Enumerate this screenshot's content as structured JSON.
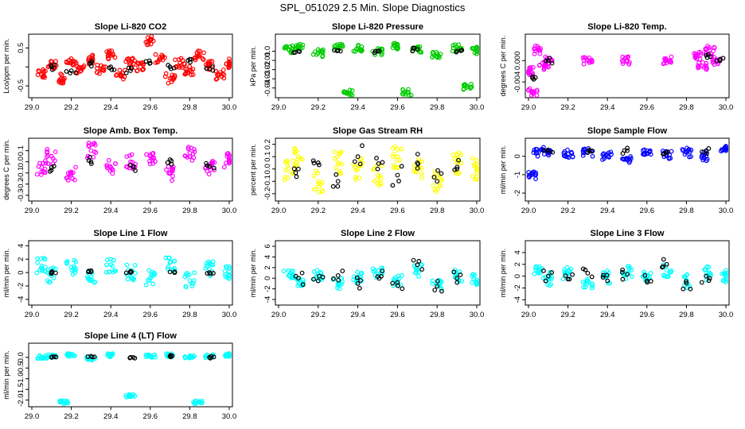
{
  "page": {
    "title": "SPL_051029  2.5 Min. Slope Diagnostics"
  },
  "colors": {
    "text": "#000000",
    "axes": "#000000",
    "overlay": "#000000"
  },
  "chart_data": [
    {
      "type": "scatter",
      "title": "Slope Li-820 CO2",
      "xlabel": "",
      "ylabel": "Lco/ppm per min.",
      "color": "#ff0000",
      "xlim": [
        29.0,
        30.0
      ],
      "ylim": [
        -0.75,
        0.8
      ],
      "xticks": [
        "29.0",
        "29.2",
        "29.4",
        "29.6",
        "29.8",
        "30.0"
      ],
      "yticks": [
        -0.5,
        0.0,
        0.5
      ],
      "yticklabels": [
        "-0.5",
        "",
        "0.5"
      ],
      "series": [
        {
          "name": "all",
          "spread": 0.13,
          "x": [
            29.05,
            29.1,
            29.15,
            29.2,
            29.25,
            29.3,
            29.35,
            29.4,
            29.45,
            29.5,
            29.55,
            29.6,
            29.65,
            29.7,
            29.75,
            29.8,
            29.85,
            29.9,
            29.95,
            30.0
          ],
          "y": [
            -0.2,
            0.05,
            -0.3,
            0.1,
            -0.1,
            0.2,
            -0.05,
            0.3,
            -0.2,
            0.1,
            0.0,
            0.7,
            0.2,
            -0.3,
            0.1,
            -0.1,
            0.3,
            0.05,
            -0.2,
            0.1
          ]
        },
        {
          "name": "subset",
          "spread": 0.08,
          "x": [
            29.1,
            29.2,
            29.3,
            29.4,
            29.5,
            29.6,
            29.7,
            29.8,
            29.9
          ],
          "y": [
            0.0,
            -0.1,
            0.1,
            0.0,
            -0.1,
            0.1,
            0.0,
            0.2,
            -0.05
          ]
        }
      ]
    },
    {
      "type": "scatter",
      "title": "Slope Li-820 Pressure",
      "xlabel": "",
      "ylabel": "kPa per min.",
      "color": "#00cc00",
      "xlim": [
        29.0,
        30.0
      ],
      "ylim": [
        -0.048,
        0.016
      ],
      "xticks": [
        "29.0",
        "29.2",
        "29.4",
        "29.6",
        "29.8",
        "30.0"
      ],
      "yticks": [
        0.0,
        -0.01,
        -0.02,
        -0.03,
        -0.04
      ],
      "yticklabels": [
        "0.0",
        "-0.01",
        "-0.02",
        "-0.03",
        "-0.04"
      ],
      "series": [
        {
          "name": "all",
          "spread": 0.004,
          "x": [
            29.05,
            29.1,
            29.2,
            29.3,
            29.35,
            29.4,
            29.5,
            29.6,
            29.65,
            29.7,
            29.8,
            29.9,
            29.95,
            30.0
          ],
          "y": [
            0.002,
            0.005,
            -0.002,
            0.004,
            -0.045,
            0.003,
            0.0,
            0.006,
            -0.045,
            0.002,
            -0.003,
            0.004,
            -0.038,
            0.001
          ]
        },
        {
          "name": "subset",
          "spread": 0.002,
          "x": [
            29.1,
            29.3,
            29.5,
            29.7,
            29.9
          ],
          "y": [
            0.0,
            0.001,
            0.0,
            0.002,
            0.0
          ]
        }
      ]
    },
    {
      "type": "scatter",
      "title": "Slope Li-820 Temp.",
      "xlabel": "",
      "ylabel": "degrees C per min.",
      "color": "#ff00ff",
      "xlim": [
        29.0,
        30.0
      ],
      "ylim": [
        -0.0065,
        0.0045
      ],
      "xticks": [
        "29.0",
        "29.2",
        "29.4",
        "29.6",
        "29.8",
        "30.0"
      ],
      "yticks": [
        0.0,
        -0.004
      ],
      "yticklabels": [
        "0.000",
        "-0.004"
      ],
      "series": [
        {
          "name": "all",
          "spread": 0.0008,
          "x": [
            29.0,
            29.02,
            29.05,
            29.08,
            29.1,
            29.3,
            29.5,
            29.7,
            29.85,
            29.88,
            29.92,
            29.95
          ],
          "y": [
            -0.002,
            -0.006,
            0.002,
            -0.001,
            0.0,
            0.0,
            0.0,
            0.0,
            0.001,
            -0.001,
            0.002,
            0.0
          ]
        },
        {
          "name": "subset",
          "spread": 0.0005,
          "x": [
            29.02,
            29.1,
            29.9,
            29.97
          ],
          "y": [
            -0.003,
            0.0,
            0.001,
            0.0
          ]
        }
      ]
    },
    {
      "type": "scatter",
      "title": "Slope Amb. Box Temp.",
      "xlabel": "",
      "ylabel": "degrees C per min.",
      "color": "#ff00ff",
      "xlim": [
        29.0,
        30.0
      ],
      "ylim": [
        -0.33,
        0.19
      ],
      "xticks": [
        "29.0",
        "29.2",
        "29.4",
        "29.6",
        "29.8",
        "30.0"
      ],
      "yticks": [
        0.1,
        0.0,
        -0.1,
        -0.2,
        -0.3
      ],
      "yticklabels": [
        "0.1",
        "0.0",
        "-0.1",
        "-0.2",
        "-0.3"
      ],
      "series": [
        {
          "name": "all",
          "spread": 0.07,
          "x": [
            29.05,
            29.1,
            29.2,
            29.3,
            29.4,
            29.5,
            29.6,
            29.7,
            29.8,
            29.9,
            30.0
          ],
          "y": [
            -0.05,
            0.05,
            -0.1,
            0.1,
            -0.05,
            0.0,
            0.05,
            -0.1,
            0.08,
            -0.05,
            0.02
          ]
        },
        {
          "name": "subset",
          "spread": 0.05,
          "x": [
            29.1,
            29.3,
            29.5,
            29.7,
            29.9
          ],
          "y": [
            -0.05,
            0.0,
            -0.03,
            0.02,
            -0.04
          ]
        }
      ]
    },
    {
      "type": "scatter",
      "title": "Slope Gas Stream RH",
      "xlabel": "",
      "ylabel": "percent per min.",
      "color": "#ffff00",
      "xlim": [
        29.0,
        30.0
      ],
      "ylim": [
        -0.24,
        0.23
      ],
      "xticks": [
        "29.0",
        "29.2",
        "29.4",
        "29.6",
        "29.8",
        "30.0"
      ],
      "yticks": [
        0.2,
        0.1,
        0.0,
        -0.1,
        -0.2
      ],
      "yticklabels": [
        "0.2",
        "0.1",
        "0.0",
        "-0.1",
        "-0.2"
      ],
      "series": [
        {
          "name": "all",
          "spread": 0.09,
          "x": [
            29.05,
            29.1,
            29.2,
            29.3,
            29.4,
            29.5,
            29.6,
            29.7,
            29.8,
            29.9,
            30.0
          ],
          "y": [
            0.0,
            0.1,
            -0.1,
            0.05,
            0.0,
            -0.05,
            0.1,
            0.0,
            -0.1,
            0.05,
            0.0
          ]
        },
        {
          "name": "subset",
          "spread": 0.1,
          "x": [
            29.1,
            29.2,
            29.3,
            29.4,
            29.5,
            29.6,
            29.7,
            29.8,
            29.9
          ],
          "y": [
            0.0,
            0.05,
            -0.1,
            0.1,
            0.0,
            -0.05,
            0.05,
            -0.1,
            0.0
          ]
        }
      ]
    },
    {
      "type": "scatter",
      "title": "Slope Sample Flow",
      "xlabel": "",
      "ylabel": "ml/min per min.",
      "color": "#0000ff",
      "xlim": [
        29.0,
        30.0
      ],
      "ylim": [
        -2.3,
        0.85
      ],
      "xticks": [
        "29.0",
        "29.2",
        "29.4",
        "29.6",
        "29.8",
        "30.0"
      ],
      "yticks": [
        0,
        -1,
        -2
      ],
      "yticklabels": [
        "0",
        "-1",
        "-2"
      ],
      "series": [
        {
          "name": "all",
          "spread": 0.25,
          "x": [
            29.02,
            29.05,
            29.1,
            29.2,
            29.3,
            29.4,
            29.5,
            29.6,
            29.7,
            29.8,
            29.9,
            30.0
          ],
          "y": [
            -1.0,
            0.2,
            0.3,
            0.1,
            0.2,
            0.0,
            -0.2,
            0.3,
            0.1,
            0.2,
            0.0,
            0.3
          ]
        },
        {
          "name": "subset",
          "spread": 0.15,
          "x": [
            29.1,
            29.3,
            29.5,
            29.7,
            29.9
          ],
          "y": [
            0.3,
            0.2,
            0.3,
            0.2,
            0.3
          ]
        }
      ]
    },
    {
      "type": "scatter",
      "title": "Slope Line 1 Flow",
      "xlabel": "",
      "ylabel": "ml/min per min.",
      "color": "#00ffff",
      "xlim": [
        29.0,
        30.0
      ],
      "ylim": [
        -4.5,
        4.4
      ],
      "xticks": [
        "29.0",
        "29.2",
        "29.4",
        "29.6",
        "29.8",
        "30.0"
      ],
      "yticks": [
        4,
        2,
        0,
        -2,
        -4
      ],
      "yticklabels": [
        "4",
        "2",
        "0",
        "-2",
        "-4"
      ],
      "series": [
        {
          "name": "all",
          "spread": 1.2,
          "x": [
            29.05,
            29.1,
            29.2,
            29.3,
            29.4,
            29.5,
            29.6,
            29.7,
            29.8,
            29.9,
            30.0
          ],
          "y": [
            1.0,
            -0.5,
            0.8,
            -1.0,
            1.2,
            0.0,
            -0.8,
            1.5,
            -1.2,
            0.5,
            -0.3
          ]
        },
        {
          "name": "subset",
          "spread": 0.2,
          "x": [
            29.1,
            29.3,
            29.5,
            29.7,
            29.9
          ],
          "y": [
            0.0,
            0.1,
            0.0,
            0.1,
            0.0
          ]
        }
      ]
    },
    {
      "type": "scatter",
      "title": "Slope Line 2 Flow",
      "xlabel": "",
      "ylabel": "ml/min per min.",
      "color": "#00ffff",
      "xlim": [
        29.0,
        30.0
      ],
      "ylim": [
        -4.6,
        6.6
      ],
      "xticks": [
        "29.0",
        "29.2",
        "29.4",
        "29.6",
        "29.8",
        "30.0"
      ],
      "yticks": [
        6,
        4,
        2,
        0,
        -2,
        -4
      ],
      "yticklabels": [
        "6",
        "4",
        "2",
        "0",
        "-2",
        "-4"
      ],
      "series": [
        {
          "name": "all",
          "spread": 1.2,
          "x": [
            29.05,
            29.1,
            29.2,
            29.3,
            29.4,
            29.5,
            29.6,
            29.7,
            29.8,
            29.9,
            30.0
          ],
          "y": [
            0.5,
            -0.5,
            0.8,
            -1.0,
            0.0,
            0.8,
            -0.5,
            1.5,
            -1.0,
            0.5,
            -0.3
          ]
        },
        {
          "name": "subset",
          "spread": 1.2,
          "x": [
            29.1,
            29.2,
            29.3,
            29.4,
            29.5,
            29.6,
            29.7,
            29.8,
            29.9
          ],
          "y": [
            0.0,
            -0.5,
            0.5,
            -1.0,
            0.3,
            -0.8,
            2.5,
            -1.5,
            0.0
          ]
        }
      ]
    },
    {
      "type": "scatter",
      "title": "Slope Line 3 Flow",
      "xlabel": "",
      "ylabel": "ml/min per min.",
      "color": "#00ffff",
      "xlim": [
        29.0,
        30.0
      ],
      "ylim": [
        -4.5,
        5.6
      ],
      "xticks": [
        "29.0",
        "29.2",
        "29.4",
        "29.6",
        "29.8",
        "30.0"
      ],
      "yticks": [
        4,
        2,
        0,
        -2,
        -4
      ],
      "yticklabels": [
        "4",
        "2",
        "0",
        "-2",
        "-4"
      ],
      "series": [
        {
          "name": "all",
          "spread": 1.2,
          "x": [
            29.05,
            29.1,
            29.2,
            29.3,
            29.4,
            29.5,
            29.6,
            29.7,
            29.8,
            29.9,
            30.0
          ],
          "y": [
            0.5,
            -0.5,
            0.5,
            -0.8,
            0.0,
            0.5,
            -0.5,
            1.0,
            -0.8,
            0.5,
            0.0
          ]
        },
        {
          "name": "subset",
          "spread": 1.1,
          "x": [
            29.1,
            29.2,
            29.3,
            29.4,
            29.5,
            29.6,
            29.7,
            29.8,
            29.9
          ],
          "y": [
            0.0,
            -0.5,
            0.5,
            -0.8,
            0.3,
            -0.8,
            2.0,
            -1.2,
            0.0
          ]
        }
      ]
    },
    {
      "type": "scatter",
      "title": "Slope Line 4 (LT) Flow",
      "xlabel": "",
      "ylabel": "ml/min per min.",
      "color": "#00ffff",
      "xlim": [
        29.0,
        30.0
      ],
      "ylim": [
        -2.2,
        0.55
      ],
      "xticks": [
        "29.0",
        "29.2",
        "29.4",
        "29.6",
        "29.8",
        "30.0"
      ],
      "yticks": [
        0.0,
        -0.5,
        -1.0,
        -1.5,
        -2.0
      ],
      "yticklabels": [
        "0.0",
        "-0.5",
        "-1.0",
        "-1.5",
        "-2.0"
      ],
      "series": [
        {
          "name": "all",
          "spread": 0.08,
          "x": [
            29.05,
            29.1,
            29.16,
            29.2,
            29.3,
            29.4,
            29.5,
            29.6,
            29.7,
            29.8,
            29.84,
            29.9,
            30.0
          ],
          "y": [
            0.0,
            0.05,
            -2.1,
            0.1,
            -0.05,
            0.1,
            -1.8,
            0.05,
            0.1,
            0.0,
            -2.1,
            0.05,
            0.1
          ]
        },
        {
          "name": "subset",
          "spread": 0.05,
          "x": [
            29.1,
            29.3,
            29.5,
            29.7,
            29.9
          ],
          "y": [
            0.0,
            0.05,
            0.0,
            0.05,
            0.0
          ]
        }
      ]
    }
  ]
}
